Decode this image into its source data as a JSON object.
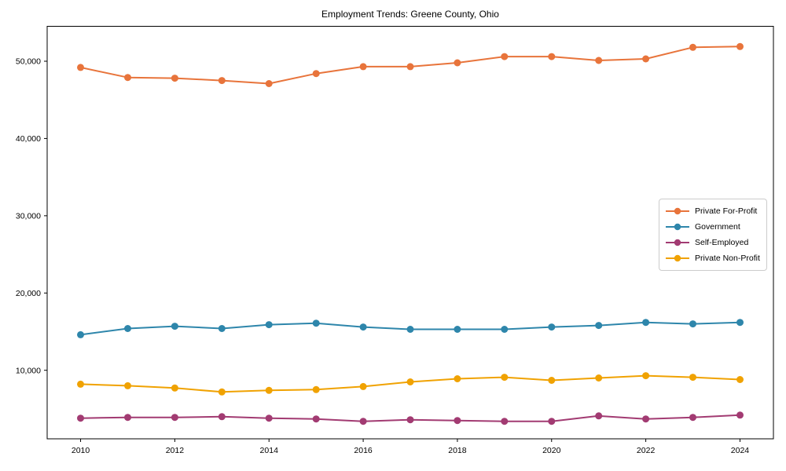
{
  "figure": {
    "background": "#ffffff"
  },
  "chart_data": {
    "type": "line",
    "title": "Employment Trends: Greene County, Ohio",
    "xlabel": "",
    "ylabel": "",
    "grid": false,
    "legend_position": "center right",
    "x": [
      2010,
      2011,
      2012,
      2013,
      2014,
      2015,
      2016,
      2017,
      2018,
      2019,
      2020,
      2021,
      2022,
      2023,
      2024
    ],
    "series": [
      {
        "name": "Private For-Profit",
        "color": "#E8743B",
        "values": [
          49200,
          47900,
          47800,
          47500,
          47100,
          48400,
          49300,
          49300,
          49800,
          50600,
          50600,
          50100,
          50300,
          51800,
          51900
        ]
      },
      {
        "name": "Government",
        "color": "#2E86AB",
        "values": [
          14600,
          15400,
          15700,
          15400,
          15900,
          16100,
          15600,
          15300,
          15300,
          15300,
          15600,
          15800,
          16200,
          16000,
          16200
        ]
      },
      {
        "name": "Self-Employed",
        "color": "#A23B72",
        "values": [
          3800,
          3900,
          3900,
          4000,
          3800,
          3700,
          3400,
          3600,
          3500,
          3400,
          3400,
          4100,
          3700,
          3900,
          4200
        ]
      },
      {
        "name": "Private Non-Profit",
        "color": "#F0A202",
        "values": [
          8200,
          8000,
          7700,
          7200,
          7400,
          7500,
          7900,
          8500,
          8900,
          9100,
          8700,
          9000,
          9300,
          9100,
          8800
        ]
      }
    ],
    "xticks": [
      2010,
      2012,
      2014,
      2016,
      2018,
      2020,
      2022,
      2024
    ],
    "xtick_labels": [
      "2010",
      "2012",
      "2014",
      "2016",
      "2018",
      "2020",
      "2022",
      "2024"
    ],
    "yticks": [
      10000,
      20000,
      30000,
      40000,
      50000
    ],
    "ytick_labels": [
      "10,000",
      "20,000",
      "30,000",
      "40,000",
      "50,000"
    ],
    "xlim": [
      2009.29,
      2024.71
    ],
    "ylim": [
      1130,
      54520
    ]
  }
}
